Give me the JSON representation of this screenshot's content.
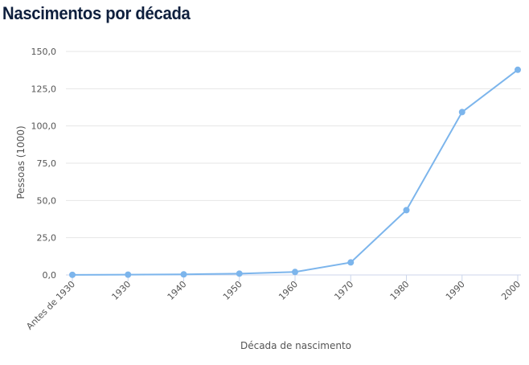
{
  "title": "Nascimentos por década",
  "chart_data": {
    "type": "line",
    "title": "Nascimentos por década",
    "xlabel": "Década de nascimento",
    "ylabel": "Pessoas (1000)",
    "categories": [
      "Antes de 1930",
      "1930",
      "1940",
      "1950",
      "1960",
      "1970",
      "1980",
      "1990",
      "2000"
    ],
    "values": [
      0.1,
      0.2,
      0.4,
      0.9,
      2.0,
      8.4,
      43.5,
      109.3,
      137.7
    ],
    "y_ticks": [
      "0,0",
      "25,0",
      "50,0",
      "75,0",
      "100,0",
      "125,0",
      "150,0"
    ],
    "ylim": [
      0,
      150
    ],
    "grid": true,
    "line_color": "#7cb5ec",
    "grid_color": "#e6e6e6",
    "axis_color": "#ccd6eb"
  }
}
